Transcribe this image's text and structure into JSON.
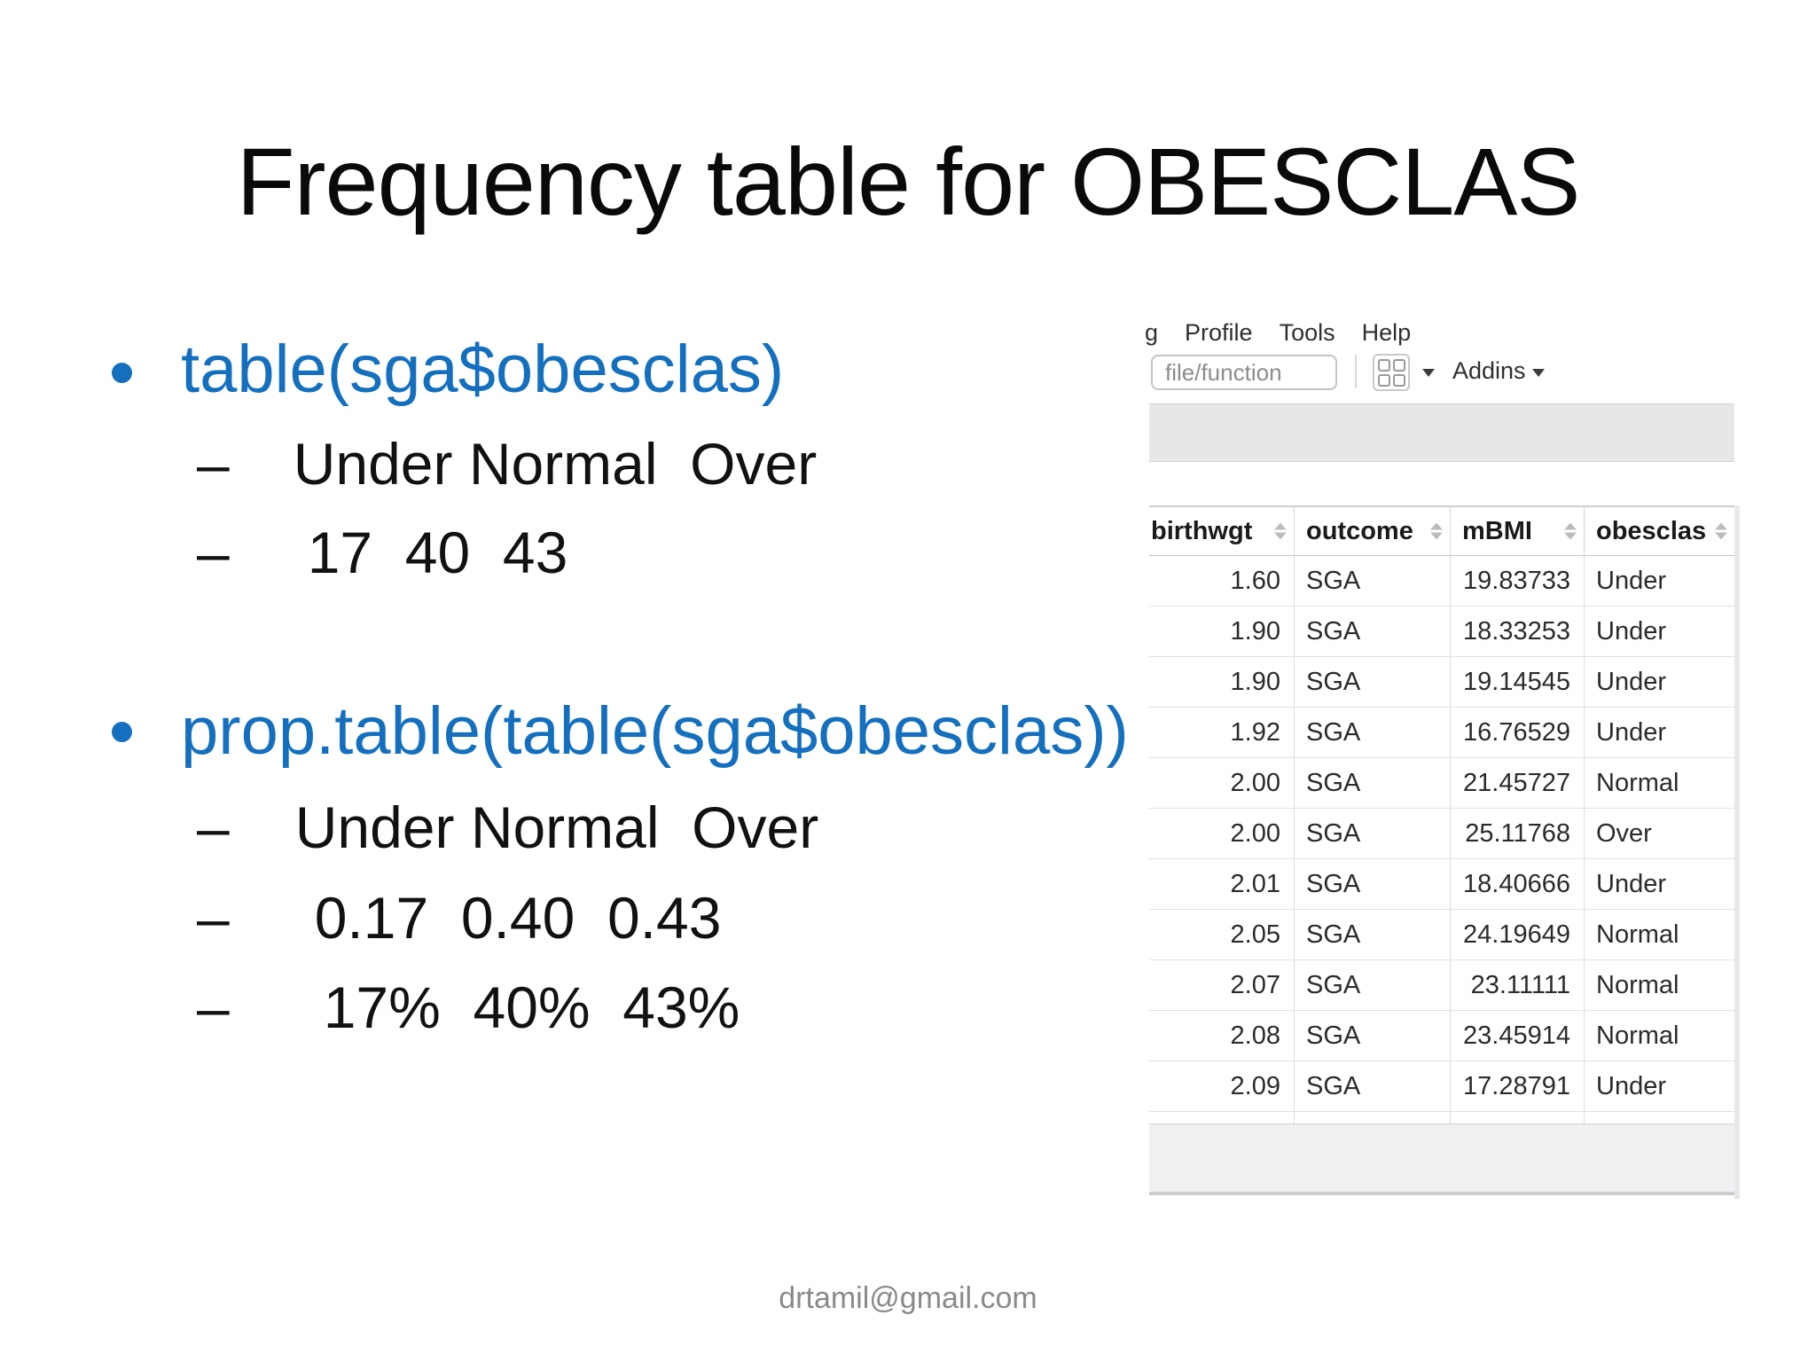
{
  "slide": {
    "title": "Frequency table for OBESCLAS",
    "footer": "drtamil@gmail.com",
    "accent_blue": "#1470be",
    "bullets": [
      {
        "code": "table(sga$obesclas)",
        "lines": [
          {
            "dash": "–",
            "text": "Under Normal  Over"
          },
          {
            "dash": "–",
            "text": "17  40  43"
          }
        ]
      },
      {
        "code": "prop.table(table(sga$obesclas))",
        "lines": [
          {
            "dash": "–",
            "text": "Under Normal  Over"
          },
          {
            "dash": "–",
            "text": "0.17  0.40  0.43"
          },
          {
            "dash": "–",
            "text": "17%  40%  43%"
          }
        ]
      }
    ]
  },
  "rstudio": {
    "menu_partial": "g",
    "menu_items": [
      "Profile",
      "Tools",
      "Help"
    ],
    "toolbar": {
      "search_text": "file/function",
      "addins_label": "Addins",
      "panes_icon": "panes-grid-icon"
    },
    "table": {
      "columns": [
        "birthwgt",
        "outcome",
        "mBMI",
        "obesclas"
      ],
      "rows": [
        [
          "1.60",
          "SGA",
          "19.83733",
          "Under"
        ],
        [
          "1.90",
          "SGA",
          "18.33253",
          "Under"
        ],
        [
          "1.90",
          "SGA",
          "19.14545",
          "Under"
        ],
        [
          "1.92",
          "SGA",
          "16.76529",
          "Under"
        ],
        [
          "2.00",
          "SGA",
          "21.45727",
          "Normal"
        ],
        [
          "2.00",
          "SGA",
          "25.11768",
          "Over"
        ],
        [
          "2.01",
          "SGA",
          "18.40666",
          "Under"
        ],
        [
          "2.05",
          "SGA",
          "24.19649",
          "Normal"
        ],
        [
          "2.07",
          "SGA",
          "23.11111",
          "Normal"
        ],
        [
          "2.08",
          "SGA",
          "23.45914",
          "Normal"
        ],
        [
          "2.09",
          "SGA",
          "17.28791",
          "Under"
        ]
      ]
    }
  }
}
